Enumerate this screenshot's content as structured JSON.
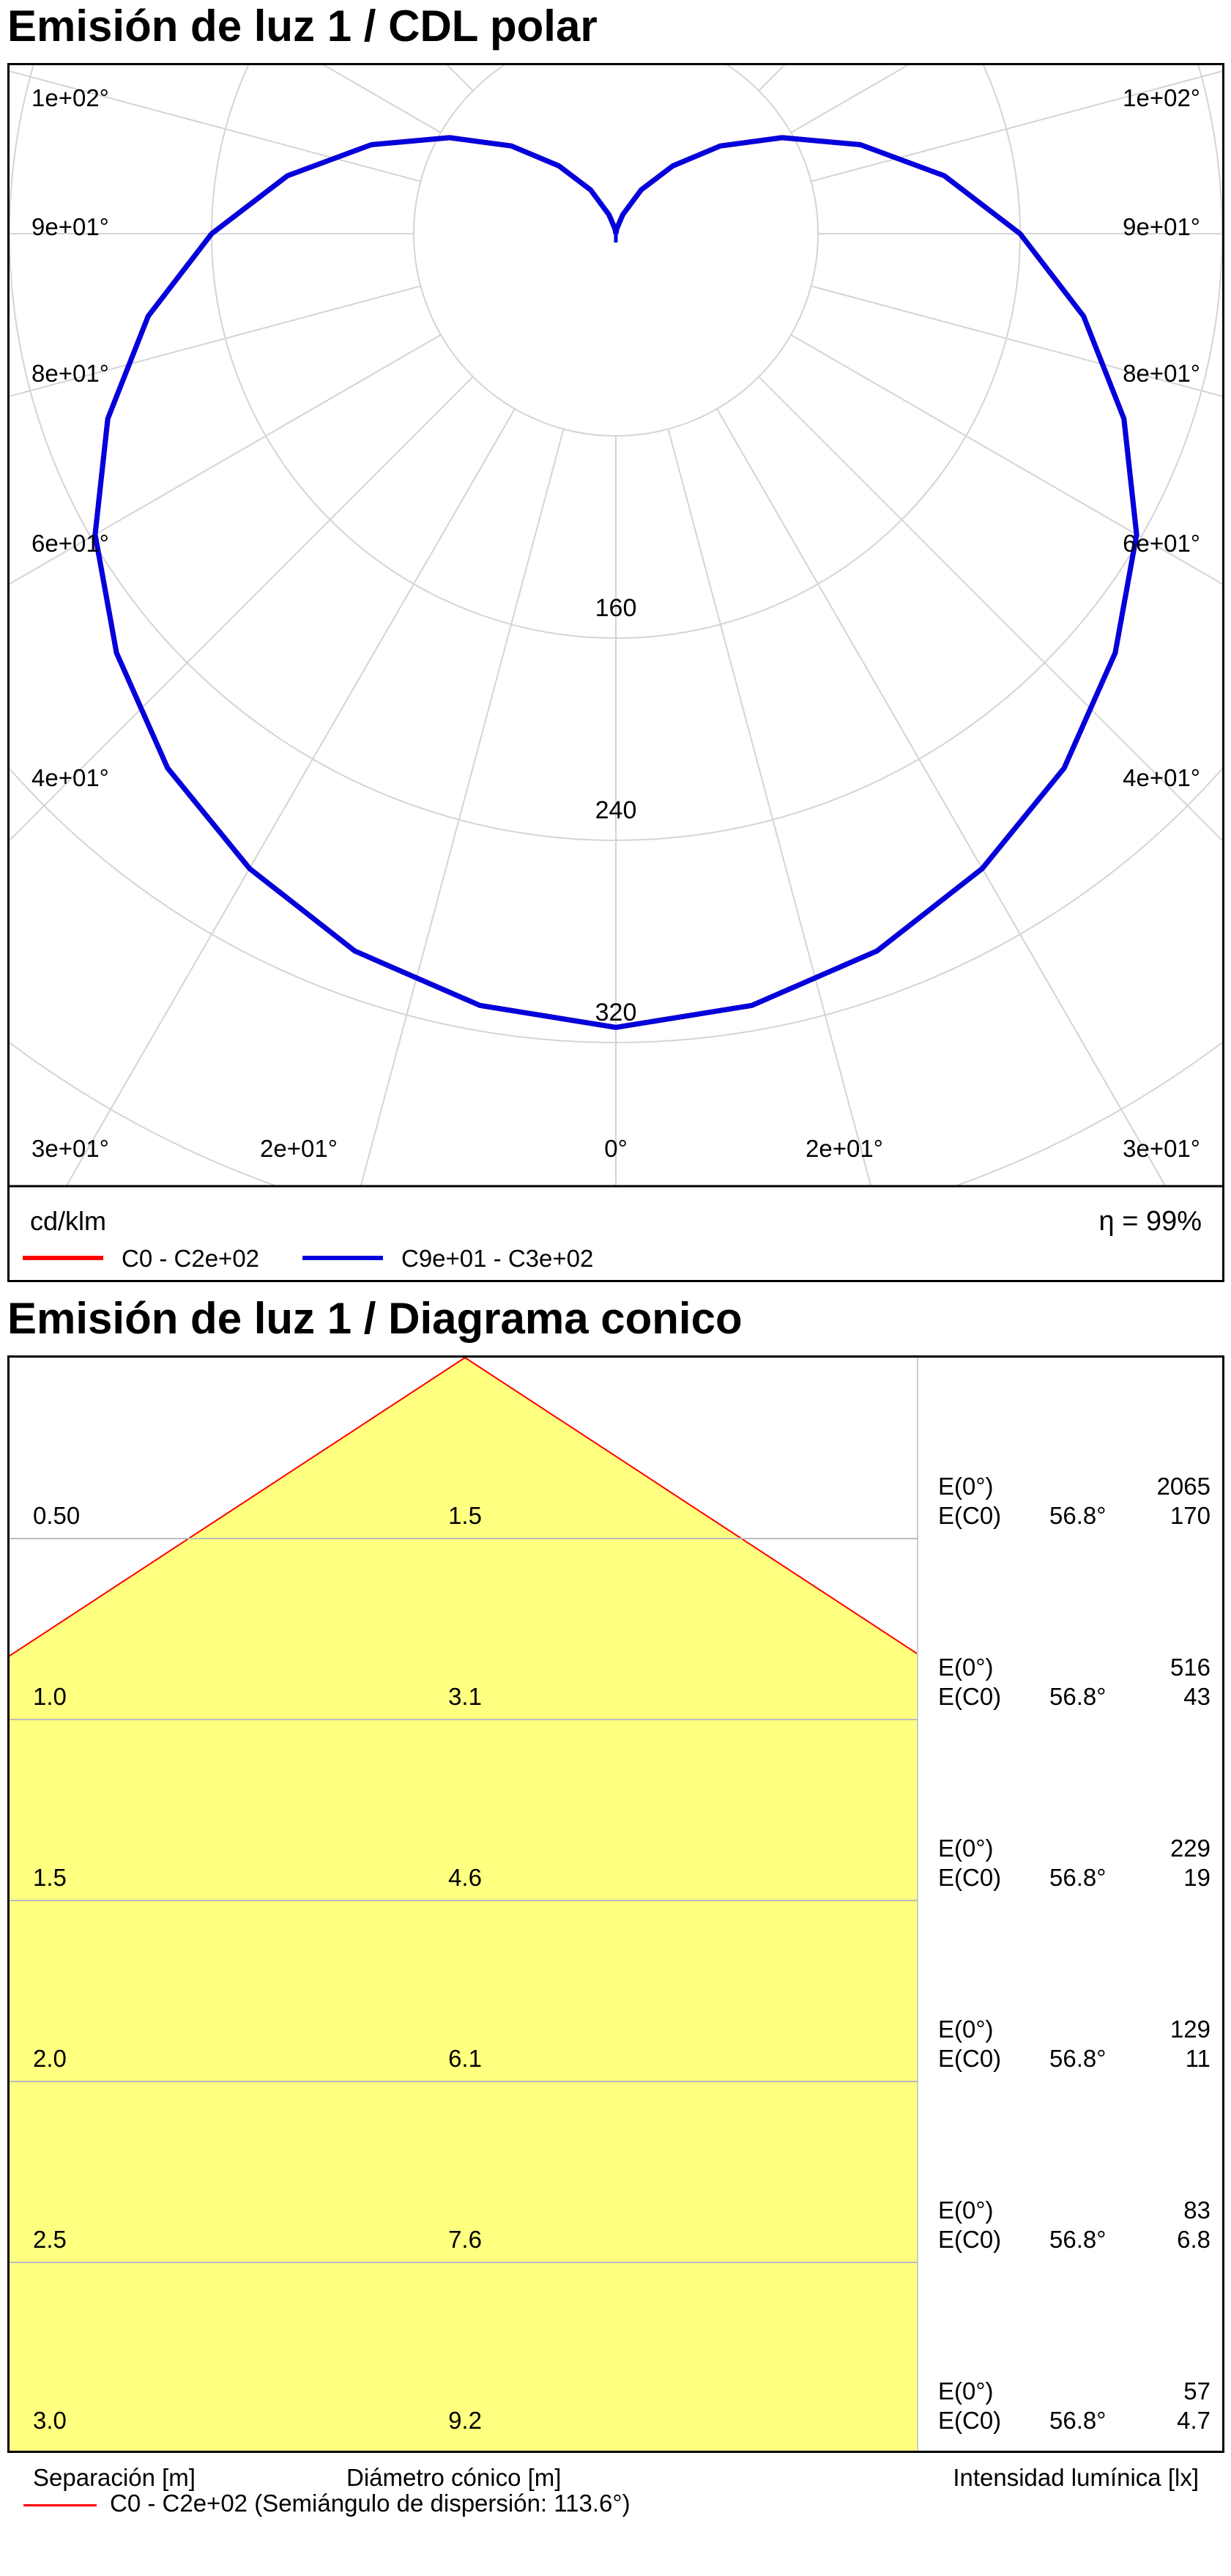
{
  "polar": {
    "title": "Emisión de luz 1 / CDL polar",
    "unit": "cd/klm",
    "efficiency": "η = 99%",
    "angle_labels_left": [
      "1e+02°",
      "9e+01°",
      "8e+01°",
      "6e+01°",
      "4e+01°",
      "3e+01°"
    ],
    "angle_labels_right": [
      "1e+02°",
      "9e+01°",
      "8e+01°",
      "6e+01°",
      "4e+01°",
      "3e+01°"
    ],
    "bottom_labels": [
      "2e+01°",
      "0°",
      "2e+01°"
    ],
    "legend": [
      {
        "label": "C0 - C2e+02",
        "color": "#ff0000"
      },
      {
        "label": "C9e+01 - C3e+02",
        "color": "#0000dd"
      }
    ]
  },
  "cone": {
    "title": "Emisión de luz 1 / Diagrama conico",
    "footer": {
      "separation": "Separación [m]",
      "diameter": "Diámetro cónico [m]",
      "intensity": "Intensidad lumínica [lx]"
    },
    "legend": {
      "label": "C0 - C2e+02 (Semiángulo de dispersión: 113.6°)",
      "color": "#ff0000"
    },
    "e0_label": "E(0°)",
    "ec0_label": "E(C0)",
    "rows": [
      {
        "separation": "0.50",
        "diameter": "1.5",
        "angle": "56.8°",
        "e0": "2065",
        "ec0": "170"
      },
      {
        "separation": "1.0",
        "diameter": "3.1",
        "angle": "56.8°",
        "e0": "516",
        "ec0": "43"
      },
      {
        "separation": "1.5",
        "diameter": "4.6",
        "angle": "56.8°",
        "e0": "229",
        "ec0": "19"
      },
      {
        "separation": "2.0",
        "diameter": "6.1",
        "angle": "56.8°",
        "e0": "129",
        "ec0": "11"
      },
      {
        "separation": "2.5",
        "diameter": "7.6",
        "angle": "56.8°",
        "e0": "83",
        "ec0": "6.8"
      },
      {
        "separation": "3.0",
        "diameter": "9.2",
        "angle": "56.8°",
        "e0": "57",
        "ec0": "4.7"
      }
    ]
  },
  "chart_data": [
    {
      "type": "polar",
      "title": "Emisión de luz 1 / CDL polar",
      "unit": "cd/klm",
      "radial_ticks": [
        160,
        240,
        320
      ],
      "rmax": 400,
      "angle_tick_labels": [
        "0°",
        "2e+01°",
        "3e+01°",
        "4e+01°",
        "6e+01°",
        "8e+01°",
        "9e+01°",
        "1e+02°"
      ],
      "series": [
        {
          "name": "C9e+01 - C3e+02",
          "color": "#0000dd",
          "gamma_deg": [
            0,
            10,
            20,
            30,
            40,
            50,
            60,
            70,
            80,
            90,
            100,
            110,
            120,
            130,
            140,
            150,
            160,
            170,
            180
          ],
          "intensity": [
            314,
            310,
            302,
            290,
            276,
            258,
            238,
            214,
            188,
            160,
            132,
            103,
            76,
            54,
            35,
            20,
            8,
            2,
            0
          ]
        },
        {
          "name": "C0 - C2e+02",
          "color": "#ff0000",
          "gamma_deg": [
            0,
            10,
            20,
            30,
            40,
            50,
            60,
            70,
            80,
            90,
            100,
            110,
            120,
            130,
            140,
            150,
            160,
            170,
            180
          ],
          "intensity": [
            314,
            310,
            302,
            290,
            276,
            258,
            238,
            214,
            188,
            160,
            132,
            103,
            76,
            54,
            35,
            20,
            8,
            2,
            0
          ]
        }
      ],
      "efficiency": "η = 99%"
    },
    {
      "type": "cone",
      "title": "Emisión de luz 1 / Diagrama conico",
      "half_angle_deg": 56.8,
      "separation_m": [
        0.5,
        1.0,
        1.5,
        2.0,
        2.5,
        3.0
      ],
      "cone_diameter_m": [
        1.5,
        3.1,
        4.6,
        6.1,
        7.6,
        9.2
      ],
      "e0_lx": [
        2065,
        516,
        229,
        129,
        83,
        57
      ],
      "ec0_lx": [
        170,
        43,
        19,
        11,
        6.8,
        4.7
      ],
      "xlabel": "Diámetro cónico [m]",
      "ylabel": "Separación [m]"
    }
  ]
}
